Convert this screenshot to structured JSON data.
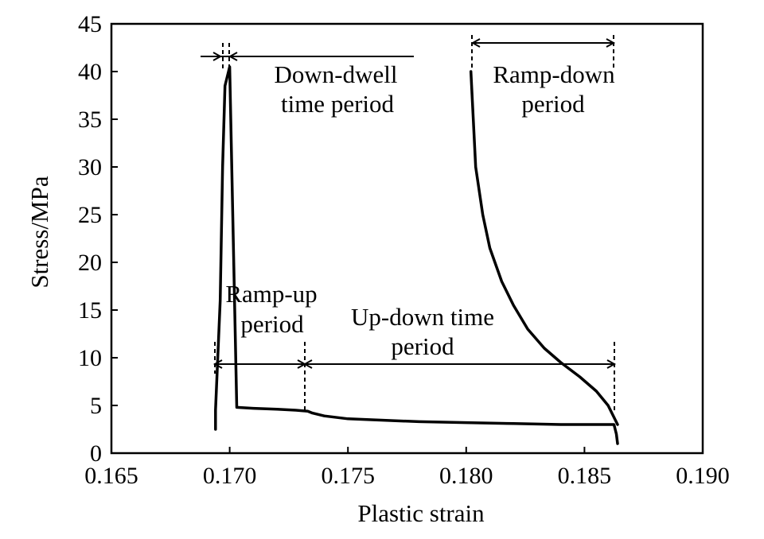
{
  "chart_data": {
    "type": "line",
    "title": "",
    "xlabel": "Plastic strain",
    "ylabel": "Stress/MPa",
    "xlim": [
      0.165,
      0.19
    ],
    "ylim": [
      0,
      45
    ],
    "x_ticks": [
      0.165,
      0.17,
      0.175,
      0.18,
      0.185,
      0.19
    ],
    "x_tick_labels": [
      "0.165",
      "0.170",
      "0.175",
      "0.180",
      "0.185",
      "0.190"
    ],
    "y_ticks": [
      0,
      5,
      10,
      15,
      20,
      25,
      30,
      35,
      40,
      45
    ],
    "y_tick_labels": [
      "0",
      "5",
      "10",
      "15",
      "20",
      "25",
      "30",
      "35",
      "40",
      "45"
    ],
    "grid": false,
    "series": [
      {
        "color": "#000000",
        "x": [
          0.1694,
          0.1694,
          0.1696,
          0.1697,
          0.1698,
          0.17,
          0.1703,
          0.171,
          0.172,
          0.1728,
          0.1733,
          0.1735,
          0.174,
          0.175,
          0.176,
          0.178,
          0.18,
          0.182,
          0.184,
          0.1855,
          0.18625,
          0.18635,
          0.1864
        ],
        "y": [
          2.5,
          4.5,
          16,
          30,
          38.5,
          40.5,
          4.8,
          4.7,
          4.6,
          4.5,
          4.4,
          4.2,
          3.9,
          3.6,
          3.5,
          3.3,
          3.2,
          3.1,
          3.0,
          3.0,
          3.0,
          2.0,
          1.0
        ]
      },
      {
        "color": "#000000",
        "x": [
          0.1802,
          0.1804,
          0.1807,
          0.181,
          0.1815,
          0.182,
          0.1826,
          0.1833,
          0.184,
          0.1848,
          0.1855,
          0.186,
          0.1864
        ],
        "y": [
          40,
          30,
          25,
          21.5,
          18,
          15.5,
          13,
          11,
          9.5,
          8,
          6.5,
          5,
          3
        ]
      }
    ],
    "annotations": [
      {
        "id": "down-dwell",
        "lines": [
          "Down-dwell",
          "time period"
        ]
      },
      {
        "id": "ramp-down",
        "lines": [
          "Ramp-down",
          "period"
        ]
      },
      {
        "id": "ramp-up",
        "lines": [
          "Ramp-up",
          "period"
        ]
      },
      {
        "id": "up-down",
        "lines": [
          "Up-down time",
          "period"
        ]
      }
    ]
  }
}
